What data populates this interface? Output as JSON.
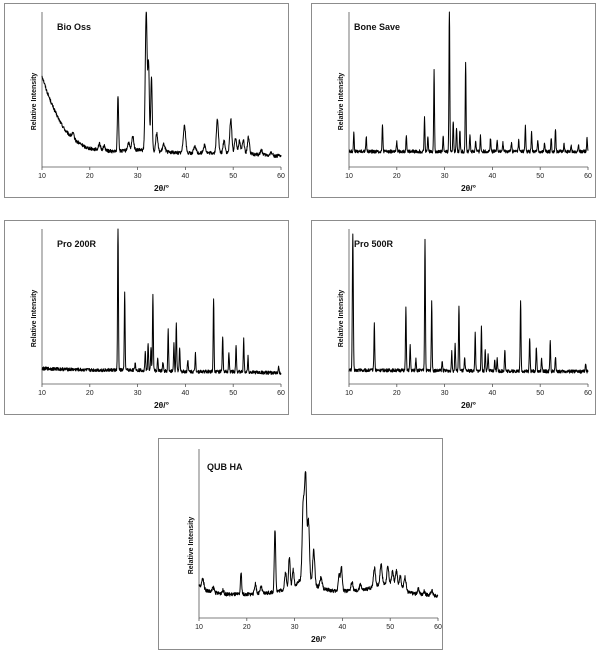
{
  "chart_data": [
    {
      "type": "line",
      "title": "Bio Oss",
      "xlabel": "2θ/°",
      "ylabel": "Relative Intensity",
      "xlim": [
        10,
        60
      ],
      "ylim": [
        0,
        100
      ],
      "x_ticks": [
        "10",
        "20",
        "30",
        "40",
        "50",
        "60"
      ],
      "baseline": 4,
      "background": [
        [
          10,
          55
        ],
        [
          11,
          45
        ],
        [
          12,
          37
        ],
        [
          13,
          30
        ],
        [
          14,
          24
        ],
        [
          15,
          19
        ],
        [
          16,
          16
        ],
        [
          17,
          13
        ],
        [
          18,
          11
        ],
        [
          19,
          9
        ],
        [
          20,
          8
        ],
        [
          22,
          7
        ],
        [
          25,
          6
        ],
        [
          30,
          7
        ],
        [
          34,
          6
        ],
        [
          40,
          5
        ],
        [
          50,
          5
        ],
        [
          60,
          3
        ]
      ],
      "peaks": [
        [
          16.5,
          3,
          0.35
        ],
        [
          22,
          4,
          0.3
        ],
        [
          23,
          3,
          0.3
        ],
        [
          25.9,
          36,
          0.18
        ],
        [
          28.1,
          5,
          0.3
        ],
        [
          29,
          9,
          0.3
        ],
        [
          31.8,
          90,
          0.28
        ],
        [
          32.3,
          55,
          0.22
        ],
        [
          32.9,
          48,
          0.22
        ],
        [
          34,
          12,
          0.3
        ],
        [
          35.5,
          5,
          0.35
        ],
        [
          39.8,
          18,
          0.35
        ],
        [
          42,
          4,
          0.35
        ],
        [
          44,
          5,
          0.35
        ],
        [
          46.7,
          22,
          0.3
        ],
        [
          48.1,
          8,
          0.3
        ],
        [
          49.5,
          22,
          0.3
        ],
        [
          50.5,
          10,
          0.3
        ],
        [
          51.3,
          8,
          0.3
        ],
        [
          52.1,
          9,
          0.3
        ],
        [
          53.2,
          11,
          0.3
        ],
        [
          55.9,
          3,
          0.3
        ],
        [
          58,
          2,
          0.3
        ]
      ]
    },
    {
      "type": "line",
      "title": "Bone Save",
      "xlabel": "2θ/°",
      "ylabel": "Relative Intensity",
      "xlim": [
        10,
        60
      ],
      "ylim": [
        0,
        100
      ],
      "x_ticks": [
        "10",
        "20",
        "30",
        "40",
        "50",
        "60"
      ],
      "baseline": 5,
      "background": [
        [
          10,
          5
        ],
        [
          60,
          5
        ]
      ],
      "peaks": [
        [
          11,
          12,
          0.12
        ],
        [
          13.6,
          10,
          0.12
        ],
        [
          17,
          17,
          0.12
        ],
        [
          20,
          6,
          0.12
        ],
        [
          22,
          11,
          0.12
        ],
        [
          25.8,
          22,
          0.12
        ],
        [
          26.5,
          10,
          0.12
        ],
        [
          27.8,
          52,
          0.12
        ],
        [
          29.7,
          10,
          0.12
        ],
        [
          31,
          95,
          0.12
        ],
        [
          31.8,
          20,
          0.12
        ],
        [
          32.5,
          16,
          0.12
        ],
        [
          33.2,
          14,
          0.12
        ],
        [
          34.4,
          58,
          0.12
        ],
        [
          35.3,
          11,
          0.12
        ],
        [
          36.5,
          7,
          0.12
        ],
        [
          37.5,
          10,
          0.12
        ],
        [
          39.6,
          9,
          0.12
        ],
        [
          41,
          8,
          0.12
        ],
        [
          42.2,
          6,
          0.12
        ],
        [
          44,
          6,
          0.12
        ],
        [
          45.5,
          7,
          0.12
        ],
        [
          46.9,
          16,
          0.12
        ],
        [
          48.2,
          12,
          0.12
        ],
        [
          49.5,
          7,
          0.12
        ],
        [
          50.9,
          6,
          0.12
        ],
        [
          52.3,
          9,
          0.12
        ],
        [
          53.2,
          15,
          0.12
        ],
        [
          55,
          5,
          0.12
        ],
        [
          56.5,
          4,
          0.12
        ],
        [
          58,
          4,
          0.12
        ],
        [
          59.8,
          9,
          0.12
        ]
      ]
    },
    {
      "type": "line",
      "title": "Pro 200R",
      "xlabel": "2θ/°",
      "ylabel": "Relative Intensity",
      "xlim": [
        10,
        60
      ],
      "ylim": [
        0,
        100
      ],
      "x_ticks": [
        "10",
        "20",
        "30",
        "40",
        "50",
        "60"
      ],
      "baseline": 4,
      "background": [
        [
          10,
          6
        ],
        [
          20,
          5
        ],
        [
          30,
          5
        ],
        [
          40,
          4
        ],
        [
          50,
          4
        ],
        [
          60,
          3
        ]
      ],
      "peaks": [
        [
          25.9,
          95,
          0.12
        ],
        [
          27.3,
          50,
          0.12
        ],
        [
          29.5,
          5,
          0.12
        ],
        [
          31.6,
          12,
          0.12
        ],
        [
          32.2,
          18,
          0.12
        ],
        [
          32.8,
          14,
          0.12
        ],
        [
          33.2,
          50,
          0.12
        ],
        [
          34.2,
          8,
          0.12
        ],
        [
          35.3,
          6,
          0.12
        ],
        [
          36.4,
          27,
          0.12
        ],
        [
          37.6,
          18,
          0.12
        ],
        [
          38.1,
          32,
          0.12
        ],
        [
          38.8,
          16,
          0.12
        ],
        [
          40.5,
          8,
          0.12
        ],
        [
          42.1,
          12,
          0.12
        ],
        [
          45.9,
          48,
          0.12
        ],
        [
          47.8,
          23,
          0.12
        ],
        [
          49.1,
          12,
          0.12
        ],
        [
          50.6,
          18,
          0.12
        ],
        [
          52.2,
          21,
          0.12
        ],
        [
          53.1,
          10,
          0.12
        ],
        [
          59.5,
          5,
          0.12
        ]
      ]
    },
    {
      "type": "line",
      "title": "Pro 500R",
      "xlabel": "2θ/°",
      "ylabel": "Relative Intensity",
      "xlim": [
        10,
        60
      ],
      "ylim": [
        0,
        100
      ],
      "x_ticks": [
        "10",
        "20",
        "30",
        "40",
        "50",
        "60"
      ],
      "baseline": 4,
      "background": [
        [
          10,
          5
        ],
        [
          60,
          4
        ]
      ],
      "peaks": [
        [
          10.8,
          88,
          0.14
        ],
        [
          15.3,
          30,
          0.12
        ],
        [
          21.9,
          40,
          0.12
        ],
        [
          22.8,
          16,
          0.12
        ],
        [
          24,
          8,
          0.12
        ],
        [
          25.9,
          85,
          0.12
        ],
        [
          27.3,
          44,
          0.12
        ],
        [
          29.5,
          6,
          0.12
        ],
        [
          31.5,
          12,
          0.12
        ],
        [
          32.2,
          18,
          0.12
        ],
        [
          33,
          42,
          0.12
        ],
        [
          34.2,
          8,
          0.12
        ],
        [
          36.4,
          24,
          0.12
        ],
        [
          37.7,
          28,
          0.12
        ],
        [
          38.5,
          14,
          0.12
        ],
        [
          39.1,
          10,
          0.12
        ],
        [
          40.5,
          7,
          0.12
        ],
        [
          41,
          9,
          0.12
        ],
        [
          42.6,
          14,
          0.12
        ],
        [
          45.9,
          46,
          0.12
        ],
        [
          47.8,
          22,
          0.12
        ],
        [
          49.2,
          16,
          0.12
        ],
        [
          50.3,
          8,
          0.12
        ],
        [
          52.1,
          19,
          0.12
        ],
        [
          53.2,
          10,
          0.12
        ],
        [
          59.5,
          5,
          0.12
        ]
      ]
    },
    {
      "type": "line",
      "title": "QUB HA",
      "xlabel": "2θ/°",
      "ylabel": "Relative Intensity",
      "xlim": [
        10,
        60
      ],
      "ylim": [
        0,
        100
      ],
      "x_ticks": [
        "10",
        "20",
        "30",
        "40",
        "50",
        "60"
      ],
      "baseline": 6,
      "background": [
        [
          10,
          13
        ],
        [
          11,
          11
        ],
        [
          13,
          9
        ],
        [
          16,
          8
        ],
        [
          20,
          8
        ],
        [
          25,
          9
        ],
        [
          28,
          11
        ],
        [
          30,
          13
        ],
        [
          31,
          16
        ],
        [
          33,
          16
        ],
        [
          35,
          12
        ],
        [
          38,
          10
        ],
        [
          40,
          10
        ],
        [
          44,
          10
        ],
        [
          46,
          12
        ],
        [
          48,
          14
        ],
        [
          50,
          14
        ],
        [
          52,
          12
        ],
        [
          54,
          9
        ],
        [
          56,
          8
        ],
        [
          60,
          7
        ]
      ],
      "peaks": [
        [
          10.8,
          6,
          0.3
        ],
        [
          13,
          3,
          0.3
        ],
        [
          15,
          2,
          0.3
        ],
        [
          18.8,
          13,
          0.18
        ],
        [
          21.8,
          6,
          0.25
        ],
        [
          23,
          4,
          0.25
        ],
        [
          25.9,
          37,
          0.2
        ],
        [
          28.1,
          10,
          0.25
        ],
        [
          28.9,
          18,
          0.25
        ],
        [
          29.7,
          10,
          0.25
        ],
        [
          31.8,
          45,
          0.3
        ],
        [
          32.3,
          62,
          0.3
        ],
        [
          32.9,
          35,
          0.3
        ],
        [
          34,
          20,
          0.3
        ],
        [
          35.5,
          6,
          0.35
        ],
        [
          39.3,
          10,
          0.25
        ],
        [
          39.8,
          14,
          0.25
        ],
        [
          42,
          5,
          0.3
        ],
        [
          43.8,
          4,
          0.3
        ],
        [
          46.7,
          11,
          0.3
        ],
        [
          48.1,
          12,
          0.3
        ],
        [
          49.5,
          10,
          0.3
        ],
        [
          50.5,
          8,
          0.3
        ],
        [
          51.3,
          9,
          0.3
        ],
        [
          52.1,
          7,
          0.3
        ],
        [
          53.1,
          8,
          0.3
        ],
        [
          55.9,
          3,
          0.3
        ],
        [
          57.1,
          2,
          0.3
        ],
        [
          58.7,
          3,
          0.3
        ]
      ]
    }
  ]
}
